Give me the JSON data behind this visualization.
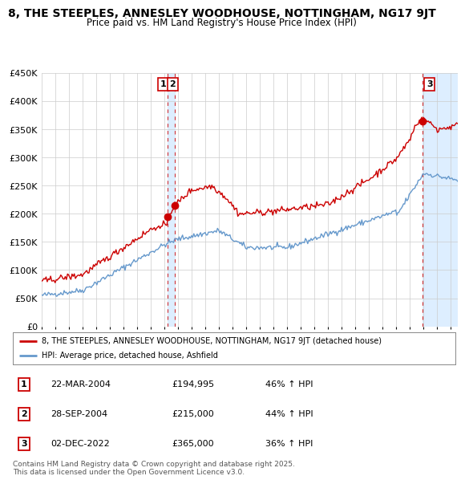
{
  "title": "8, THE STEEPLES, ANNESLEY WOODHOUSE, NOTTINGHAM, NG17 9JT",
  "subtitle": "Price paid vs. HM Land Registry's House Price Index (HPI)",
  "legend_line1": "8, THE STEEPLES, ANNESLEY WOODHOUSE, NOTTINGHAM, NG17 9JT (detached house)",
  "legend_line2": "HPI: Average price, detached house, Ashfield",
  "footnote": "Contains HM Land Registry data © Crown copyright and database right 2025.\nThis data is licensed under the Open Government Licence v3.0.",
  "ylim": [
    0,
    450000
  ],
  "yticks": [
    0,
    50000,
    100000,
    150000,
    200000,
    250000,
    300000,
    350000,
    400000,
    450000
  ],
  "ytick_labels": [
    "£0",
    "£50K",
    "£100K",
    "£150K",
    "£200K",
    "£250K",
    "£300K",
    "£350K",
    "£400K",
    "£450K"
  ],
  "sale_points": [
    {
      "num": 1,
      "date": "22-MAR-2004",
      "price": 194995,
      "hpi_pct": "46% ↑ HPI",
      "x_year": 2004.22
    },
    {
      "num": 2,
      "date": "28-SEP-2004",
      "price": 215000,
      "hpi_pct": "44% ↑ HPI",
      "x_year": 2004.74
    },
    {
      "num": 3,
      "date": "02-DEC-2022",
      "price": 365000,
      "hpi_pct": "36% ↑ HPI",
      "x_year": 2022.92
    }
  ],
  "red_color": "#cc0000",
  "blue_color": "#6699cc",
  "shade_color": "#ddeeff",
  "bg_color": "#ffffff",
  "grid_color": "#cccccc",
  "xlim_left": 1995,
  "xlim_right": 2025.5
}
